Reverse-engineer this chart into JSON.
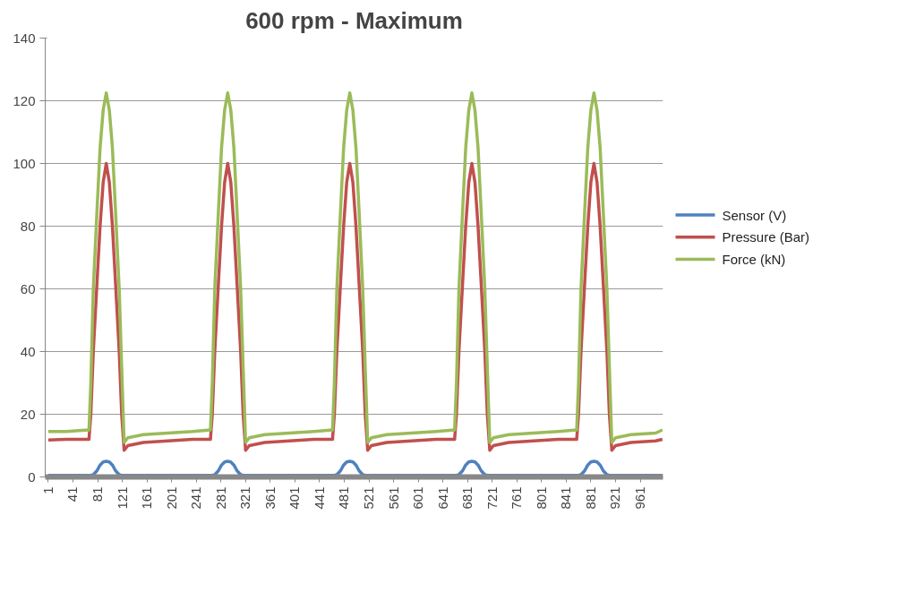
{
  "chart_data": {
    "type": "line",
    "title": "600 rpm - Maximum",
    "x": [
      1,
      30,
      67,
      70,
      74,
      80,
      85,
      90,
      95,
      100,
      105,
      110,
      116,
      120,
      124,
      130,
      155,
      195,
      235,
      264,
      267,
      271,
      277,
      282,
      287,
      292,
      297,
      302,
      307,
      313,
      317,
      321,
      327,
      352,
      392,
      432,
      462,
      465,
      469,
      475,
      480,
      485,
      490,
      495,
      500,
      505,
      511,
      515,
      519,
      525,
      550,
      590,
      630,
      660,
      663,
      667,
      673,
      678,
      683,
      688,
      693,
      698,
      703,
      709,
      713,
      717,
      723,
      748,
      788,
      828,
      858,
      861,
      865,
      871,
      876,
      881,
      886,
      891,
      896,
      901,
      907,
      911,
      915,
      921,
      946,
      986,
      997
    ],
    "series": [
      {
        "name": "Sensor (V)",
        "color": "#4f81bd",
        "values": [
          0.5,
          0.5,
          0.5,
          0.5,
          0.7,
          2,
          3.8,
          4.8,
          5,
          4.8,
          3.8,
          2,
          0.7,
          0.5,
          0.5,
          0.5,
          0.5,
          0.5,
          0.5,
          0.5,
          0.5,
          0.7,
          2,
          3.8,
          4.8,
          5,
          4.8,
          3.8,
          2,
          0.7,
          0.5,
          0.5,
          0.5,
          0.5,
          0.5,
          0.5,
          0.5,
          0.5,
          0.7,
          2,
          3.8,
          4.8,
          5,
          4.8,
          3.8,
          2,
          0.7,
          0.5,
          0.5,
          0.5,
          0.5,
          0.5,
          0.5,
          0.5,
          0.5,
          0.7,
          2,
          3.8,
          4.8,
          5,
          4.8,
          3.8,
          2,
          0.7,
          0.5,
          0.5,
          0.5,
          0.5,
          0.5,
          0.5,
          0.5,
          0.5,
          0.7,
          2,
          3.8,
          4.8,
          5,
          4.8,
          3.8,
          2,
          0.7,
          0.5,
          0.5,
          0.5,
          0.5,
          0.5,
          0.5
        ]
      },
      {
        "name": "Pressure (Bar)",
        "color": "#c0504d",
        "values": [
          11.8,
          12,
          12,
          20,
          40,
          62,
          80,
          94,
          100,
          94,
          80,
          62,
          40,
          20,
          8.5,
          10,
          11,
          11.5,
          12,
          12,
          20,
          40,
          62,
          80,
          94,
          100,
          94,
          80,
          62,
          40,
          20,
          8.5,
          10,
          11,
          11.5,
          12,
          12,
          20,
          40,
          62,
          80,
          94,
          100,
          94,
          80,
          62,
          40,
          20,
          8.5,
          10,
          11,
          11.5,
          12,
          12,
          20,
          40,
          62,
          80,
          94,
          100,
          94,
          80,
          62,
          40,
          20,
          8.5,
          10,
          11,
          11.5,
          12,
          12,
          20,
          40,
          62,
          80,
          94,
          100,
          94,
          80,
          62,
          40,
          20,
          8.5,
          10,
          11,
          11.5,
          12
        ]
      },
      {
        "name": "Force (kN)",
        "color": "#9bbb59",
        "values": [
          14.5,
          14.5,
          15,
          30,
          60,
          85,
          105,
          117,
          122.5,
          117,
          105,
          85,
          60,
          35,
          11,
          12.5,
          13.5,
          14,
          14.5,
          15,
          30,
          60,
          85,
          105,
          117,
          122.5,
          117,
          105,
          85,
          60,
          35,
          11,
          12.5,
          13.5,
          14,
          14.5,
          15,
          30,
          60,
          85,
          105,
          117,
          122.5,
          117,
          105,
          85,
          60,
          35,
          11,
          12.5,
          13.5,
          14,
          14.5,
          15,
          30,
          60,
          85,
          105,
          117,
          122.5,
          117,
          105,
          85,
          60,
          35,
          11,
          12.5,
          13.5,
          14,
          14.5,
          15,
          30,
          60,
          85,
          105,
          117,
          122.5,
          117,
          105,
          85,
          60,
          35,
          11,
          12.5,
          13.5,
          14,
          15
        ]
      }
    ],
    "xlim": [
      -4,
      998
    ],
    "xticks": [
      1,
      41,
      81,
      121,
      161,
      201,
      241,
      281,
      321,
      361,
      401,
      441,
      481,
      521,
      561,
      601,
      641,
      681,
      721,
      761,
      801,
      841,
      881,
      921,
      961
    ],
    "ylim": [
      0,
      140
    ],
    "yticks": [
      0,
      20,
      40,
      60,
      80,
      100,
      120,
      140
    ],
    "grid": "y",
    "legend": "right",
    "marker": "none",
    "line_style": "solid"
  }
}
